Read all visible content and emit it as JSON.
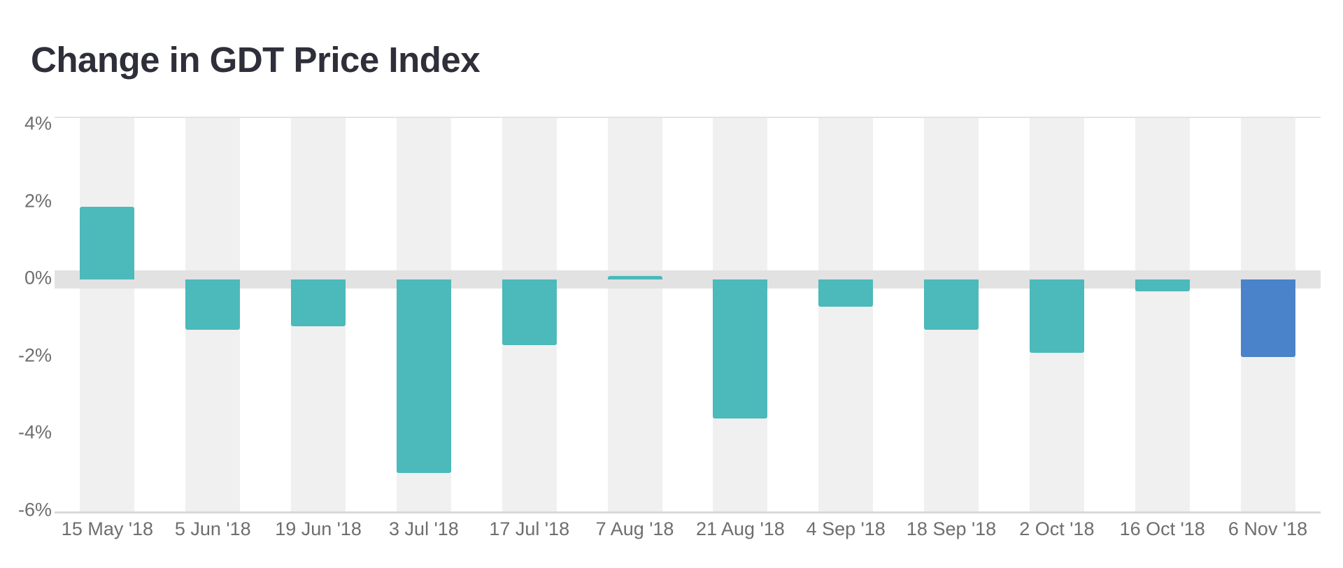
{
  "title": "Change in GDT Price Index",
  "colors": {
    "bar": "#4cb9ba",
    "bar_highlight": "#4a83c9",
    "column_stripe": "#f0f0f0",
    "zero_band": "#e2e2e2",
    "axis_line_top": "#e3e3e3",
    "axis_line_bottom": "#d9d9d9",
    "axis_label": "#6e6e6e",
    "title": "#2f2f3a"
  },
  "chart_data": {
    "type": "bar",
    "title": "Change in GDT Price Index",
    "categories": [
      "15 May '18",
      "5 Jun '18",
      "19 Jun '18",
      "3 Jul '18",
      "17 Jul '18",
      "7 Aug '18",
      "21 Aug '18",
      "4 Sep '18",
      "18 Sep '18",
      "2 Oct '18",
      "16 Oct '18",
      "6 Nov '18"
    ],
    "values": [
      1.9,
      -1.3,
      -1.2,
      -5.0,
      -1.7,
      0.1,
      -3.6,
      -0.7,
      -1.3,
      -1.9,
      -0.3,
      -2.0
    ],
    "unit": "%",
    "xlabel": "",
    "ylabel": "",
    "ylim": [
      -6.0,
      4.19
    ],
    "yticks": [
      4,
      2,
      0,
      -2,
      -4,
      -6
    ],
    "ytick_labels": [
      "4%",
      "2%",
      "0%",
      "-2%",
      "-4%",
      "-6%"
    ],
    "highlight_index": 11,
    "legend": "none",
    "grid": "none",
    "background": "alternating vertical column stripes with thick zero band"
  }
}
